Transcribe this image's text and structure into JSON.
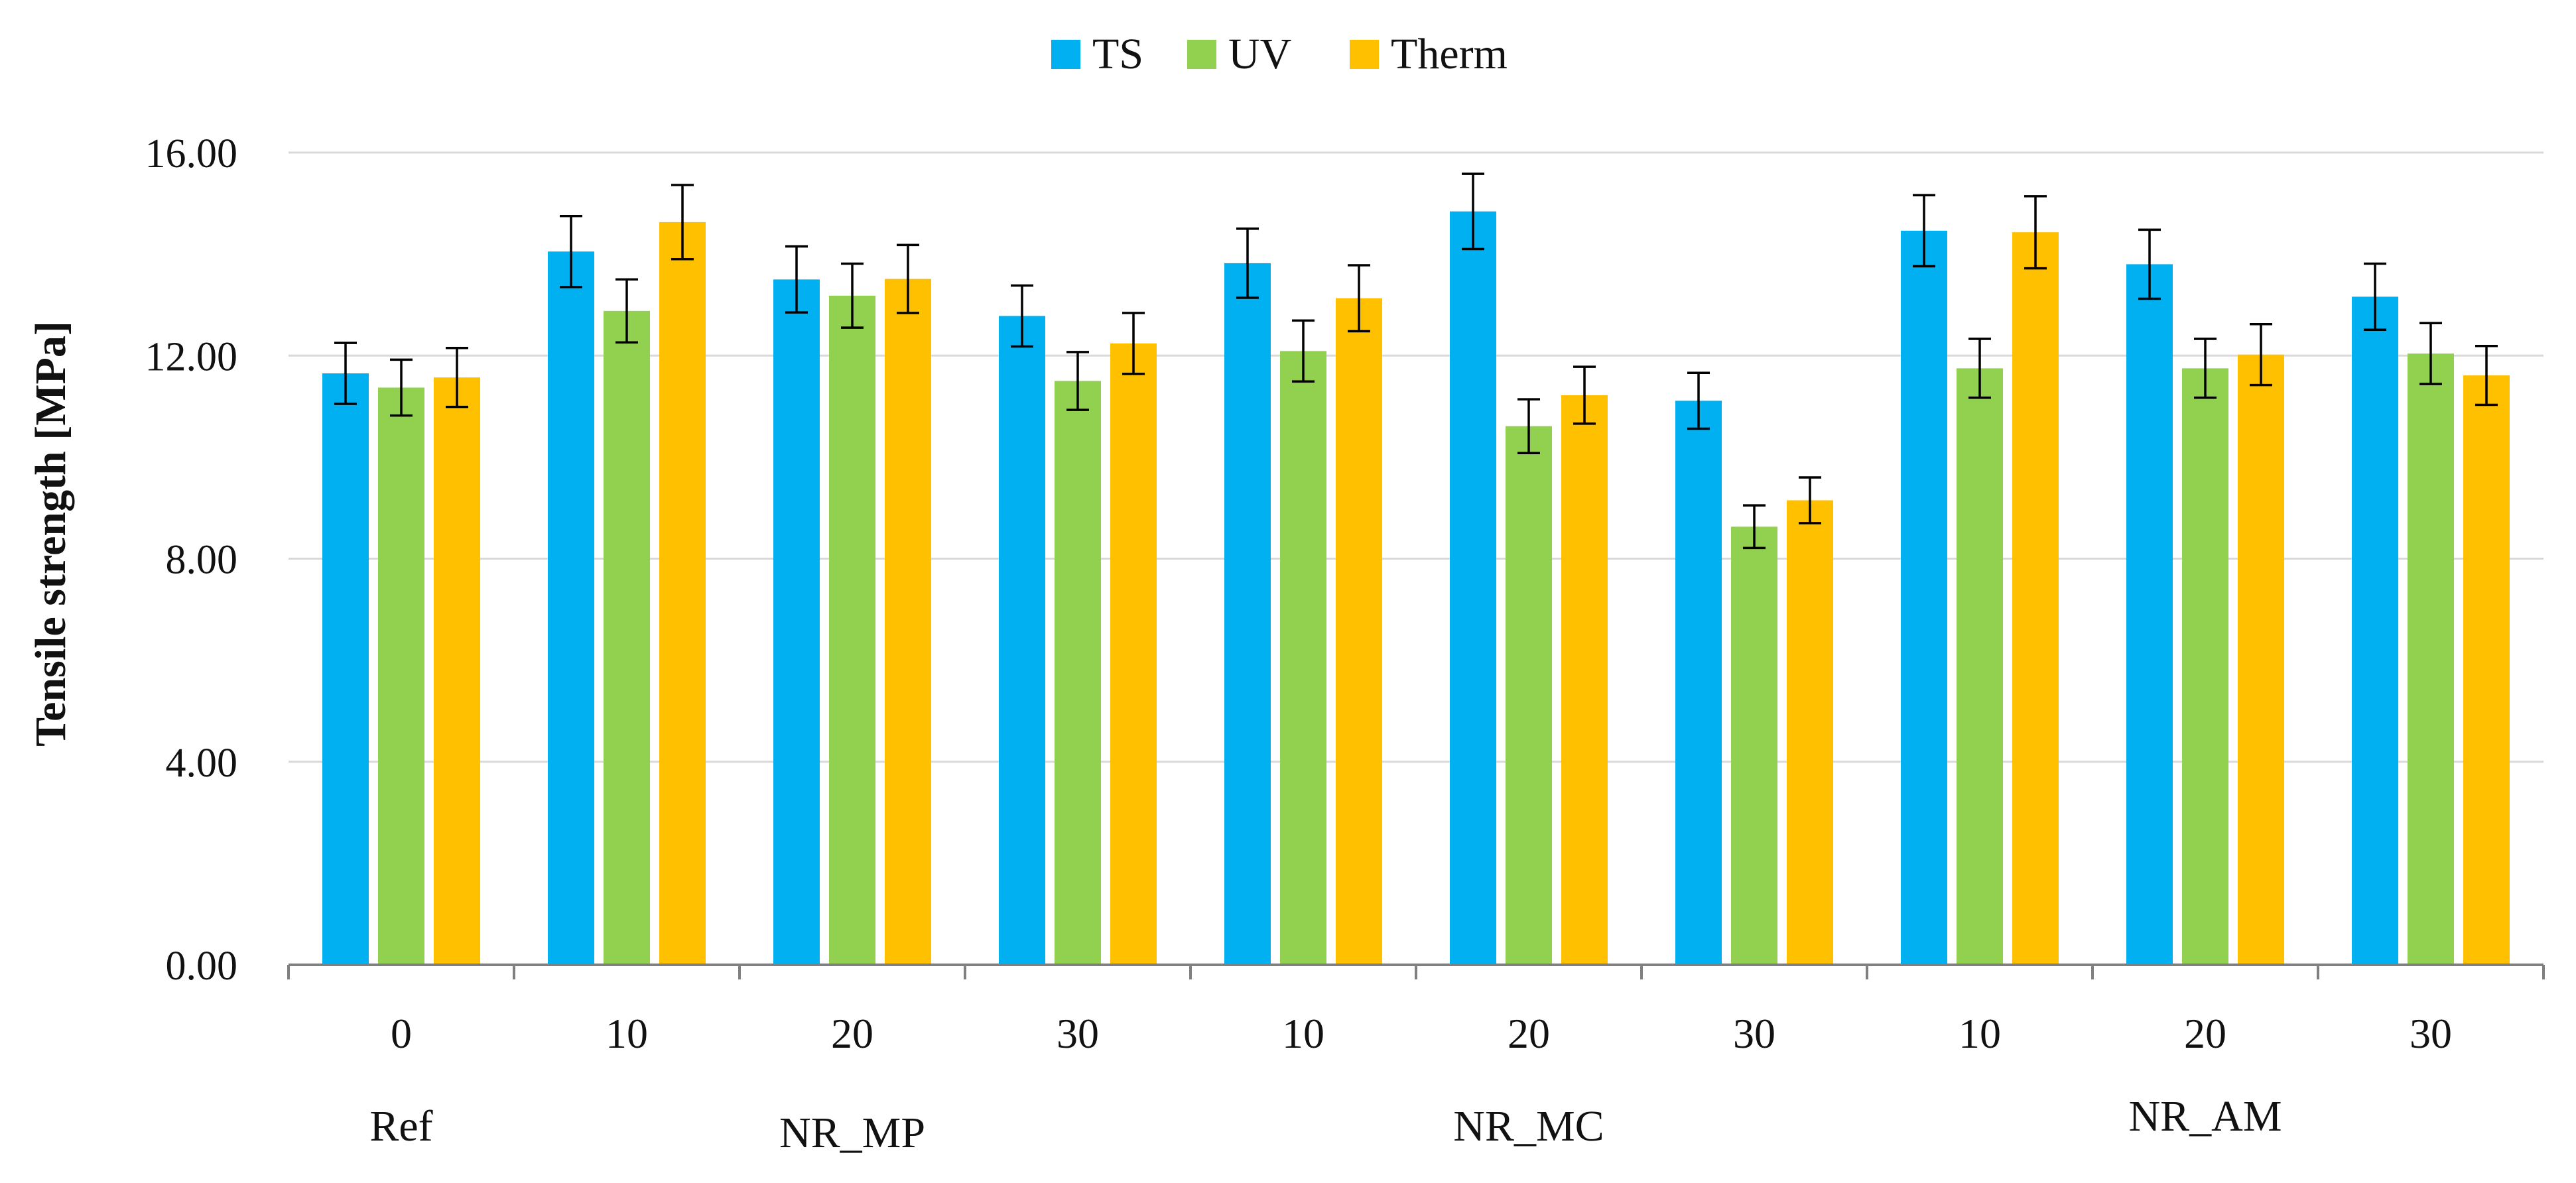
{
  "chart_data": {
    "type": "bar",
    "title": "",
    "xlabel": "",
    "ylabel": "Tensile strength [MPa]",
    "ylim": [
      0,
      16
    ],
    "yticks": [
      "0.00",
      "4.00",
      "8.00",
      "12.00",
      "16.00"
    ],
    "ytick_values": [
      0,
      4,
      8,
      12,
      16
    ],
    "grid": true,
    "legend_position": "top-center",
    "categories": [
      "0",
      "10",
      "20",
      "30",
      "10",
      "20",
      "30",
      "10",
      "20",
      "30"
    ],
    "groups": [
      {
        "label": "Ref",
        "start": 0,
        "count": 1
      },
      {
        "label": "NR_MP",
        "start": 1,
        "count": 3
      },
      {
        "label": "NR_MC",
        "start": 4,
        "count": 3
      },
      {
        "label": "NR_AM",
        "start": 7,
        "count": 3
      }
    ],
    "series": [
      {
        "name": "TS",
        "color": "#00B0F0",
        "values": [
          11.65,
          14.05,
          13.5,
          12.78,
          13.82,
          14.84,
          11.11,
          14.46,
          13.8,
          13.16
        ],
        "errors": [
          0.6,
          0.7,
          0.65,
          0.6,
          0.68,
          0.74,
          0.55,
          0.7,
          0.68,
          0.65
        ]
      },
      {
        "name": "UV",
        "color": "#92D050",
        "values": [
          11.37,
          12.88,
          13.18,
          11.5,
          12.09,
          10.61,
          8.63,
          11.75,
          11.75,
          12.04
        ],
        "errors": [
          0.55,
          0.62,
          0.63,
          0.57,
          0.6,
          0.53,
          0.42,
          0.58,
          0.58,
          0.6
        ]
      },
      {
        "name": "Therm",
        "color": "#FFC000",
        "values": [
          11.57,
          14.63,
          13.51,
          12.24,
          13.13,
          11.22,
          9.15,
          14.43,
          12.02,
          11.61
        ],
        "errors": [
          0.58,
          0.73,
          0.67,
          0.6,
          0.65,
          0.56,
          0.45,
          0.71,
          0.6,
          0.58
        ]
      }
    ]
  }
}
